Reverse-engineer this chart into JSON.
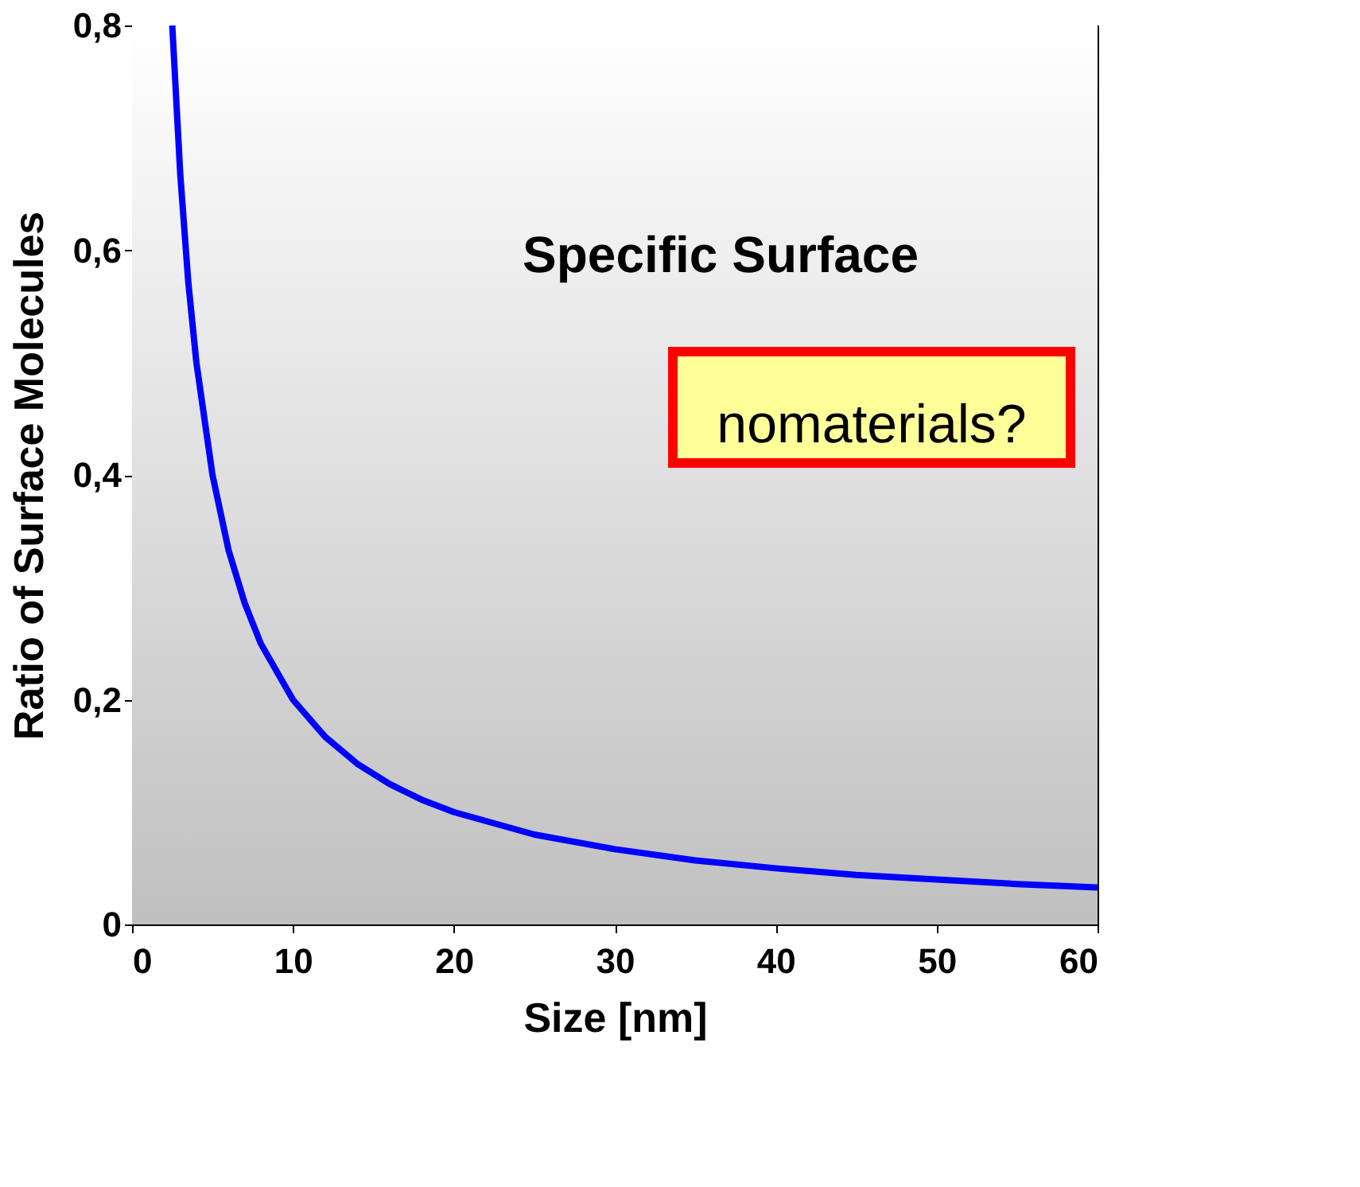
{
  "chart_data": {
    "type": "line",
    "xlabel": "Size [nm]",
    "ylabel": "Ratio of Surface Molecules",
    "annotations": [
      "Specific Surface",
      "nomaterials?"
    ],
    "x": [
      2.5,
      3,
      3.5,
      4,
      5,
      6,
      7,
      8,
      10,
      12,
      14,
      16,
      18,
      20,
      25,
      30,
      35,
      40,
      45,
      50,
      55,
      60
    ],
    "series": [
      {
        "color": "#0000ff",
        "values": [
          0.8,
          0.667,
          0.571,
          0.5,
          0.4,
          0.333,
          0.286,
          0.25,
          0.2,
          0.167,
          0.143,
          0.125,
          0.111,
          0.1,
          0.08,
          0.067,
          0.057,
          0.05,
          0.044,
          0.04,
          0.036,
          0.033
        ]
      }
    ],
    "xlim": [
      0,
      60
    ],
    "ylim": [
      0,
      0.8
    ],
    "xticks": [
      0,
      10,
      20,
      30,
      40,
      50,
      60
    ],
    "yticks": [
      0,
      {
        "value": 0.2,
        "label": "0,2"
      },
      {
        "value": 0.4,
        "label": "0,4"
      },
      {
        "value": 0.6,
        "label": "0,6"
      },
      {
        "value": 0.8,
        "label": "0,8"
      }
    ],
    "grid": false,
    "line_style": "solid",
    "marker": "none"
  }
}
